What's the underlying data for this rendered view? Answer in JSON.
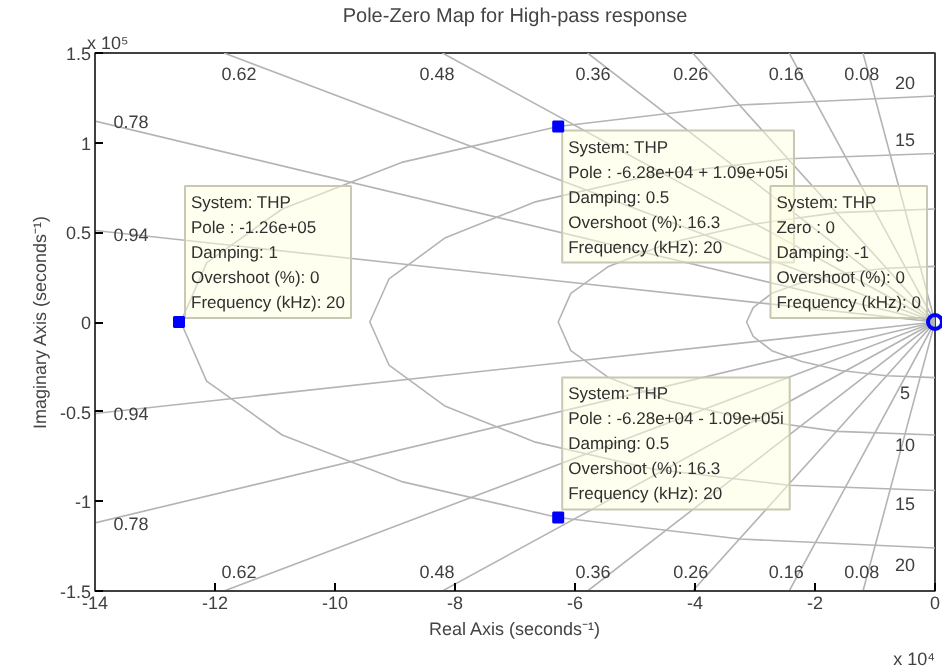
{
  "chart_data": {
    "type": "scatter",
    "title": "Pole-Zero Map for High-pass response",
    "xlabel": "Real Axis (seconds⁻¹)",
    "ylabel": "Imaginary Axis (seconds⁻¹)",
    "xlim": [
      -14,
      0
    ],
    "xticks": [
      -14,
      -12,
      -10,
      -8,
      -6,
      -4,
      -2,
      0
    ],
    "ylim": [
      -1.5,
      1.5
    ],
    "yticks": [
      -1.5,
      -1,
      -0.5,
      0,
      0.5,
      1,
      1.5
    ],
    "grid": false,
    "series": [
      {
        "type": "line",
        "color": "#b4b4b4",
        "marker": "none",
        "x": [
          -14,
          0,
          -14
        ],
        "values": [
          0.51,
          0,
          -0.51
        ]
      },
      {
        "type": "line",
        "color": "#b4b4b4",
        "marker": "none",
        "x": [
          -14,
          0,
          -14
        ],
        "values": [
          1.12,
          0,
          -1.12
        ]
      },
      {
        "type": "line",
        "color": "#b4b4b4",
        "marker": "none",
        "x": [
          -11.85,
          0,
          -11.85
        ],
        "values": [
          1.5,
          0,
          -1.5
        ]
      },
      {
        "type": "line",
        "color": "#b4b4b4",
        "marker": "none",
        "x": [
          -8.21,
          0,
          -8.21
        ],
        "values": [
          1.5,
          0,
          -1.5
        ]
      },
      {
        "type": "line",
        "color": "#b4b4b4",
        "marker": "none",
        "x": [
          -5.79,
          0,
          -5.79
        ],
        "values": [
          1.5,
          0,
          -1.5
        ]
      },
      {
        "type": "line",
        "color": "#b4b4b4",
        "marker": "none",
        "x": [
          -4.04,
          0,
          -4.04
        ],
        "values": [
          1.5,
          0,
          -1.5
        ]
      },
      {
        "type": "line",
        "color": "#b4b4b4",
        "marker": "none",
        "x": [
          -2.43,
          0,
          -2.43
        ],
        "values": [
          1.5,
          0,
          -1.5
        ]
      },
      {
        "type": "line",
        "color": "#b4b4b4",
        "marker": "none",
        "x": [
          -1.2,
          0,
          -1.2
        ],
        "values": [
          1.5,
          0,
          -1.5
        ]
      },
      {
        "type": "line",
        "color": "#b4b4b4",
        "marker": "none",
        "x": [
          0,
          -0.81,
          -1.57,
          -2.22,
          -2.72,
          -3.03,
          -3.14,
          -3.03,
          -2.72,
          -2.22,
          -1.57,
          -0.81,
          0
        ],
        "values": [
          0.31,
          0.3,
          0.27,
          0.22,
          0.16,
          0.08,
          0,
          -0.08,
          -0.16,
          -0.22,
          -0.27,
          -0.3,
          -0.31
        ]
      },
      {
        "type": "line",
        "color": "#b4b4b4",
        "marker": "none",
        "x": [
          0,
          -1.63,
          -3.14,
          -4.44,
          -5.44,
          -6.07,
          -6.28,
          -6.07,
          -5.44,
          -4.44,
          -3.14,
          -1.63,
          0
        ],
        "values": [
          0.63,
          0.61,
          0.54,
          0.44,
          0.31,
          0.16,
          0,
          -0.16,
          -0.31,
          -0.44,
          -0.54,
          -0.61,
          -0.63
        ]
      },
      {
        "type": "line",
        "color": "#b4b4b4",
        "marker": "none",
        "x": [
          0,
          -2.44,
          -4.71,
          -6.66,
          -8.16,
          -9.1,
          -9.42,
          -9.1,
          -8.16,
          -6.66,
          -4.71,
          -2.44,
          0
        ],
        "values": [
          0.94,
          0.91,
          0.82,
          0.67,
          0.47,
          0.24,
          0,
          -0.24,
          -0.47,
          -0.67,
          -0.82,
          -0.91,
          -0.94
        ]
      },
      {
        "type": "line",
        "color": "#b4b4b4",
        "marker": "none",
        "x": [
          0,
          -3.25,
          -6.28,
          -8.89,
          -10.88,
          -12.14,
          -12.57,
          -12.14,
          -10.88,
          -8.89,
          -6.28,
          -3.25,
          0
        ],
        "values": [
          1.26,
          1.21,
          1.09,
          0.89,
          0.63,
          0.33,
          0,
          -0.33,
          -0.63,
          -0.89,
          -1.09,
          -1.21,
          -1.26
        ]
      },
      {
        "color": "#0000ff",
        "marker": "square",
        "x": [
          -12.6,
          -6.28,
          -6.28
        ],
        "values": [
          0,
          1.09,
          -1.09
        ]
      },
      {
        "color": "#0000ff",
        "marker": "circle",
        "x": [
          0
        ],
        "values": [
          0
        ]
      }
    ],
    "annotations": [
      {
        "text": "System: THP\nPole : -1.26e+05\nDamping: 1\nOvershoot (%): 0\nFrequency (kHz): 20",
        "x": -12.6,
        "y": 0
      },
      {
        "text": "System: THP\nPole : -6.28e+04 + 1.09e+05i\nDamping: 0.5\nOvershoot (%): 16.3\nFrequency (kHz): 20",
        "x": -6.28,
        "y": 1.09
      },
      {
        "text": "System: THP\nZero : 0\nDamping: -1\nOvershoot (%): 0\nFrequency (kHz): 0",
        "x": 0,
        "y": 0
      },
      {
        "text": "System: THP\nPole : -6.28e+04 - 1.09e+05i\nDamping: 0.5\nOvershoot (%): 16.3\nFrequency (kHz): 20",
        "x": -6.28,
        "y": -1.09
      },
      "x 10⁵",
      "x 10⁴",
      "0.62",
      "0.48",
      "0.36",
      "0.26",
      "0.16",
      "0.08",
      "0.78",
      "0.94",
      "0.94",
      "0.78",
      "0.62",
      "0.48",
      "0.36",
      "0.26",
      "0.16",
      "0.08",
      "20",
      "15",
      "5",
      "10",
      "15",
      "20"
    ]
  }
}
